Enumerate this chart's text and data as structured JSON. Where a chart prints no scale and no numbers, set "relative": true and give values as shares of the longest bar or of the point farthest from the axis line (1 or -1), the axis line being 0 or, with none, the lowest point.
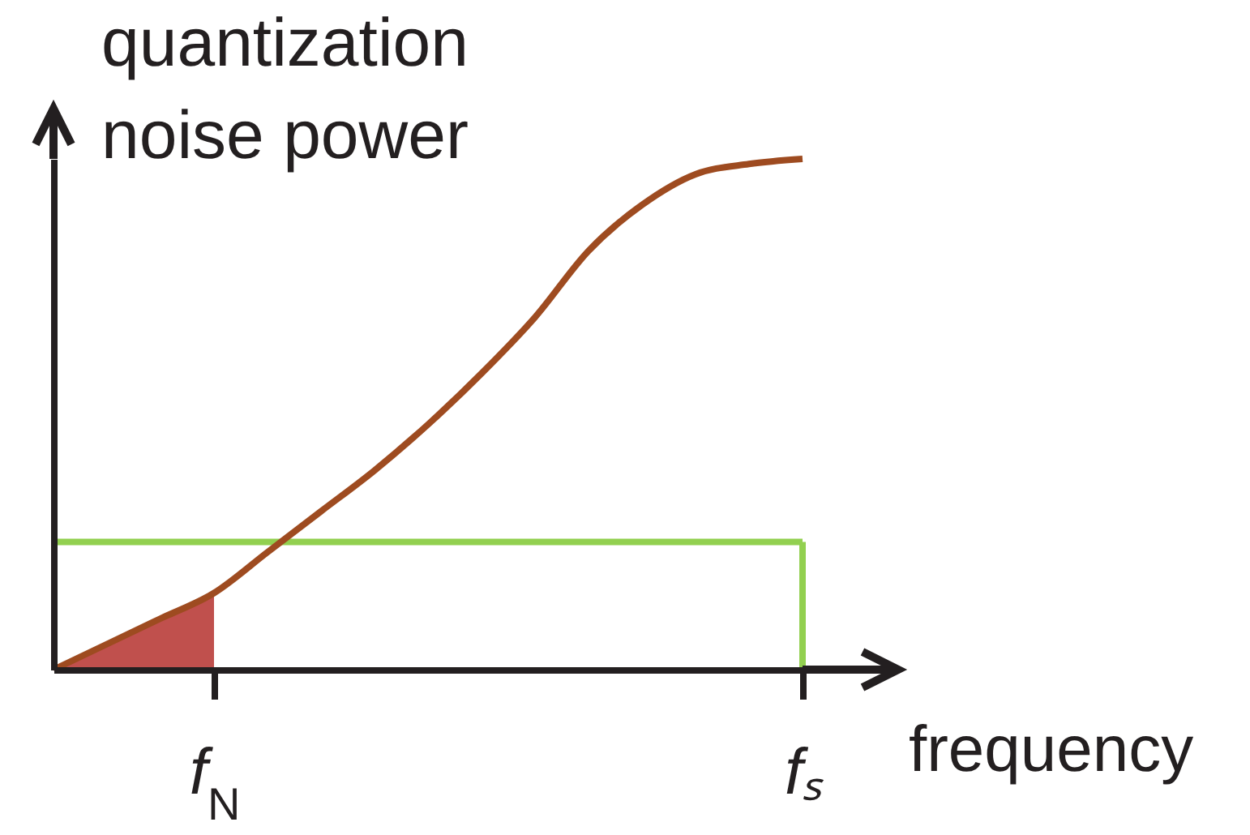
{
  "chart_data": {
    "type": "line",
    "xlabel": "frequency",
    "ylabel": "quantization noise power",
    "relative": true,
    "tick_labels": "x",
    "categories": [
      null,
      null,
      null,
      "f$_{N}$",
      null,
      null,
      null,
      null,
      null,
      null,
      null,
      null,
      null,
      null,
      "fₛ"
    ],
    "series": [
      {
        "color": "#92d050",
        "values": [
          0.25,
          0.25,
          0.25,
          0.25,
          0.25,
          0.25,
          0.25,
          0.25,
          0.25,
          0.25,
          0.25,
          0.25,
          0.25,
          0.25,
          0.25
        ]
      },
      {
        "color": "#92d050",
        "x": [
          "fₛ",
          "fₛ"
        ],
        "values": [
          0.25,
          0
        ]
      },
      {
        "type": "area",
        "color": "#c0504d",
        "values": [
          0,
          0.05,
          0.1,
          0.15,
          null,
          null,
          null,
          null,
          null,
          null,
          null,
          null,
          null,
          null,
          null
        ]
      },
      {
        "color": "#9e4b20",
        "values": [
          0,
          0.05,
          0.1,
          0.15,
          0.23,
          0.31,
          0.39,
          0.48,
          0.58,
          0.69,
          0.82,
          0.91,
          0.97,
          0.99,
          1
        ]
      }
    ]
  }
}
